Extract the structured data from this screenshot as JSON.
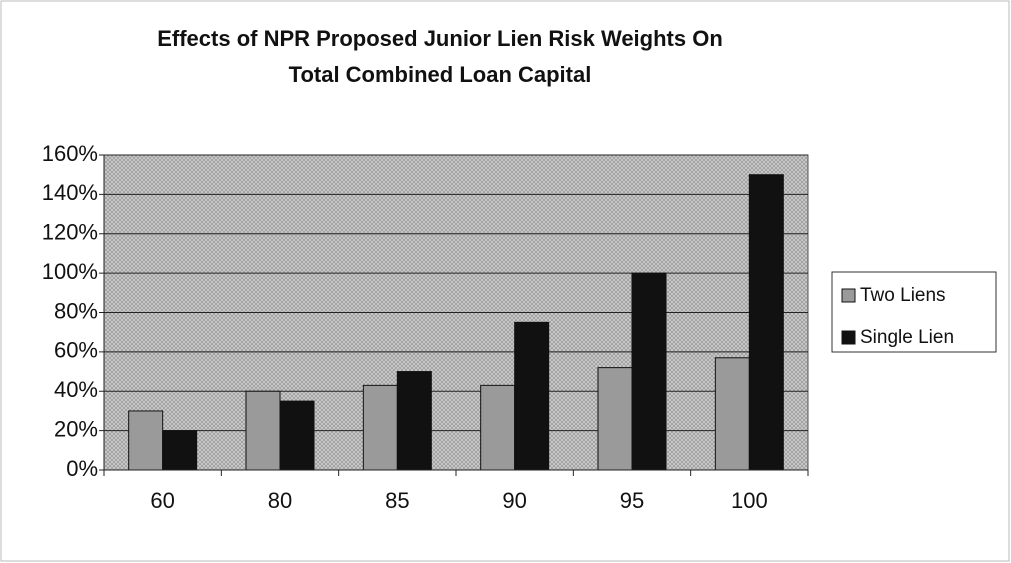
{
  "chart_data": {
    "type": "bar",
    "title": [
      "Effects of NPR Proposed Junior Lien Risk Weights On",
      "Total Combined Loan Capital"
    ],
    "categories": [
      "60",
      "80",
      "85",
      "90",
      "95",
      "100"
    ],
    "series": [
      {
        "name": "Two Liens",
        "color": "#9a9a9a",
        "values": [
          30,
          40,
          43,
          43,
          52,
          57
        ]
      },
      {
        "name": "Single Lien",
        "color": "#111111",
        "values": [
          20,
          35,
          50,
          75,
          100,
          150
        ]
      }
    ],
    "ylim": [
      0,
      160
    ],
    "yticks": [
      {
        "value": 0,
        "label": "0%"
      },
      {
        "value": 20,
        "label": "20%"
      },
      {
        "value": 40,
        "label": "40%"
      },
      {
        "value": 60,
        "label": "60%"
      },
      {
        "value": 80,
        "label": "80%"
      },
      {
        "value": 100,
        "label": "100%"
      },
      {
        "value": 120,
        "label": "120%"
      },
      {
        "value": 140,
        "label": "140%"
      },
      {
        "value": 160,
        "label": "160%"
      }
    ],
    "grid": true,
    "legend": "right"
  }
}
